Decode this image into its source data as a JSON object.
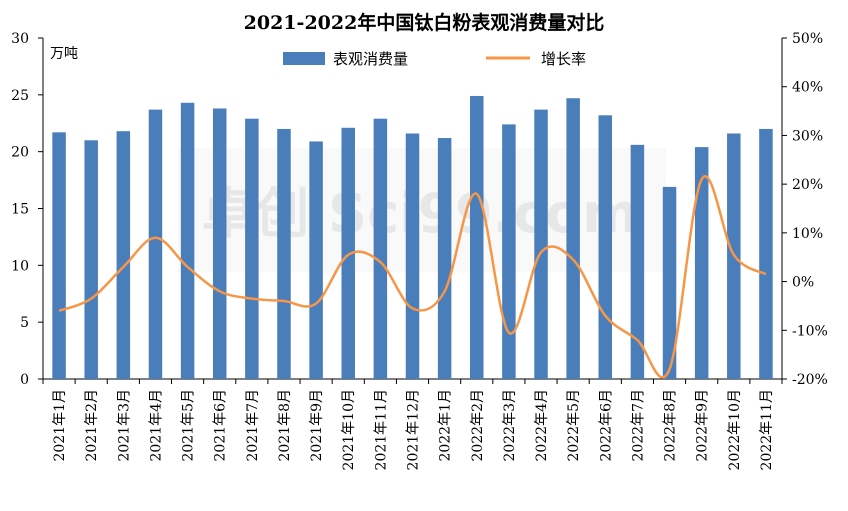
{
  "chart_data": {
    "type": "bar",
    "title": "2021-2022年中国钛白粉表观消费量对比",
    "y_unit_label": "万吨",
    "categories": [
      "2021年1月",
      "2021年2月",
      "2021年3月",
      "2021年4月",
      "2021年5月",
      "2021年6月",
      "2021年7月",
      "2021年8月",
      "2021年9月",
      "2021年10月",
      "2021年11月",
      "2021年12月",
      "2022年1月",
      "2022年2月",
      "2022年3月",
      "2022年4月",
      "2022年5月",
      "2022年6月",
      "2022年7月",
      "2022年8月",
      "2022年9月",
      "2022年10月",
      "2022年11月"
    ],
    "series": [
      {
        "name": "表观消费量",
        "type": "bar",
        "axis": "left",
        "color": "#4a7ebb",
        "values": [
          21.7,
          21.0,
          21.8,
          23.7,
          24.3,
          23.8,
          22.9,
          22.0,
          20.9,
          22.1,
          22.9,
          21.6,
          21.2,
          24.9,
          22.4,
          23.7,
          24.7,
          23.2,
          20.6,
          16.9,
          20.4,
          21.6,
          22.0
        ]
      },
      {
        "name": "增长率",
        "type": "line",
        "axis": "right",
        "color": "#f79646",
        "values": [
          -6,
          -3.5,
          3,
          9,
          3,
          -2,
          -3.5,
          -4,
          -4.5,
          5.5,
          4,
          -5.5,
          -2,
          18,
          -10.5,
          6,
          4.5,
          -7,
          -12,
          -18,
          21,
          5.5,
          1.5
        ]
      }
    ],
    "y_left": {
      "min": 0,
      "max": 30,
      "ticks": [
        "0",
        "5",
        "10",
        "15",
        "20",
        "25",
        "30"
      ]
    },
    "y_right": {
      "min": -20,
      "max": 50,
      "ticks": [
        "-20%",
        "-10%",
        "0%",
        "10%",
        "20%",
        "30%",
        "40%",
        "50%"
      ]
    },
    "grid": false,
    "legend_position": "top-center"
  },
  "watermark": "卓创 Sci99.com"
}
